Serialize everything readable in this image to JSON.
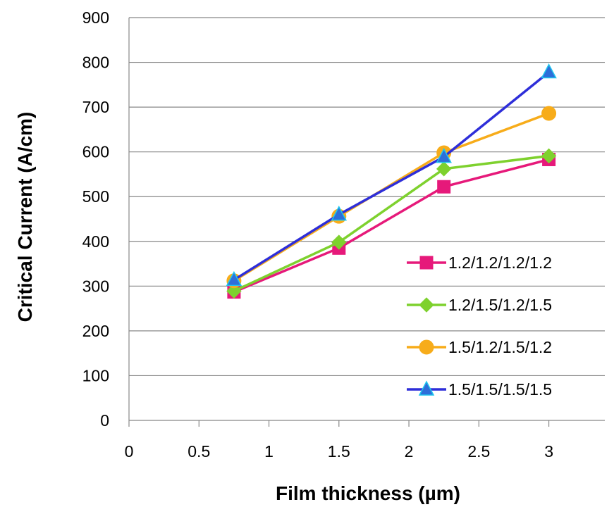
{
  "chart_data": {
    "type": "line",
    "xlabel": "Film thickness (µm)",
    "ylabel": "Critical Current (A/cm)",
    "xlim": [
      0,
      3.4
    ],
    "ylim": [
      0,
      900
    ],
    "xticks": [
      0,
      0.5,
      1,
      1.5,
      2,
      2.5,
      3
    ],
    "yticks": [
      0,
      100,
      200,
      300,
      400,
      500,
      600,
      700,
      800,
      900
    ],
    "xtick_labels": [
      "0",
      "0.5",
      "1",
      "1.5",
      "2",
      "2.5",
      "3"
    ],
    "ytick_labels": [
      "0",
      "100",
      "200",
      "300",
      "400",
      "500",
      "600",
      "700",
      "800",
      "900"
    ],
    "grid": "horizontal",
    "legend_position": "bottom-right",
    "x": [
      0.75,
      1.5,
      2.25,
      3
    ],
    "series": [
      {
        "name": "1.2/1.2/1.2/1.2",
        "values": [
          287,
          385,
          522,
          583
        ],
        "color": "#e6197a",
        "marker": "square"
      },
      {
        "name": "1.2/1.5/1.2/1.5",
        "values": [
          289,
          398,
          562,
          591
        ],
        "color": "#7ed12e",
        "marker": "diamond"
      },
      {
        "name": "1.5/1.2/1.5/1.2",
        "values": [
          312,
          456,
          598,
          686
        ],
        "color": "#f7ac1a",
        "marker": "circle"
      },
      {
        "name": "1.5/1.5/1.5/1.5",
        "values": [
          314,
          460,
          589,
          778
        ],
        "color": "#2e2ed9",
        "marker": "triangle",
        "marker_fill": "#2e6ed9",
        "marker_stroke": "#1ec6ee"
      }
    ]
  }
}
